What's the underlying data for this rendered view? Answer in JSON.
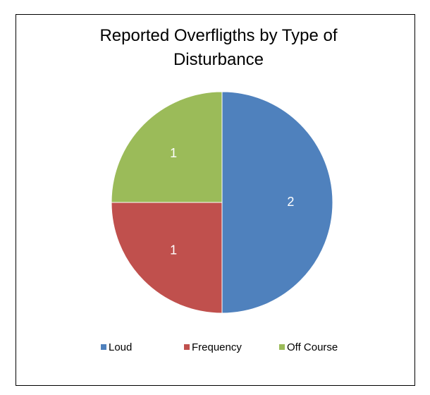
{
  "chart_data": {
    "type": "pie",
    "title": "Reported Overfligths by Type of Disturbance",
    "categories": [
      "Loud",
      "Frequency",
      "Off Course"
    ],
    "values": [
      2,
      1,
      1
    ],
    "colors": [
      "#4f81bd",
      "#c0504d",
      "#9bbb59"
    ],
    "legend": "bottom"
  }
}
